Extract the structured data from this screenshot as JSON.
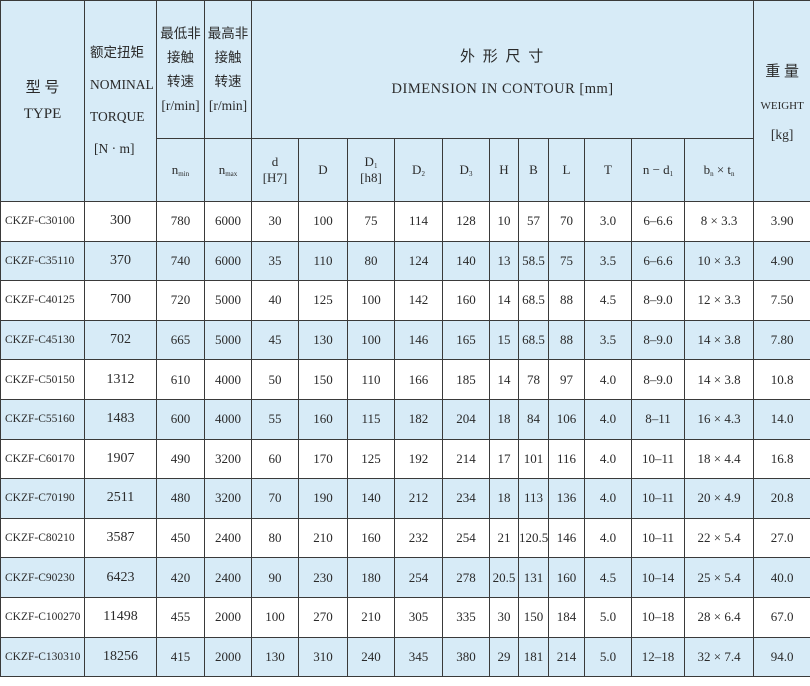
{
  "header": {
    "type_cn": "型 号",
    "type_en": "TYPE",
    "torque_cn": "额定扭矩",
    "torque_en1": "NOMINAL",
    "torque_en2": "TORQUE",
    "torque_unit": "[N · m]",
    "nmin_cn1": "最低非",
    "nmin_cn2": "接触",
    "nmin_cn3": "转速",
    "nmin_unit": "[r/min]",
    "nmax_cn1": "最高非",
    "nmax_cn2": "接触",
    "nmax_cn3": "转速",
    "nmax_unit": "[r/min]",
    "dim_cn": "外 形 尺 寸",
    "dim_en": "DIMENSION IN CONTOUR [mm]",
    "weight_cn": "重 量",
    "weight_en": "WEIGHT",
    "weight_unit": "[kg]",
    "nmin_sym": "n",
    "nmin_sub": "min",
    "nmax_sym": "n",
    "nmax_sub": "max",
    "d": "d",
    "d_tol": "[H7]",
    "D": "D",
    "D1": "D",
    "D1_sub": "1",
    "D1_tol": "[h8]",
    "D2": "D",
    "D2_sub": "2",
    "D3": "D",
    "D3_sub": "3",
    "H": "H",
    "B": "B",
    "L": "L",
    "T": "T",
    "nd1": "n − d",
    "nd1_sub": "1",
    "bn": "b",
    "bn_sub": "n",
    "times": " × t",
    "tn_sub": "n"
  },
  "rows": [
    [
      "CKZF-C30100",
      "300",
      "780",
      "6000",
      "30",
      "100",
      "75",
      "114",
      "128",
      "10",
      "57",
      "70",
      "3.0",
      "6–6.6",
      "8 × 3.3",
      "3.90"
    ],
    [
      "CKZF-C35110",
      "370",
      "740",
      "6000",
      "35",
      "110",
      "80",
      "124",
      "140",
      "13",
      "58.5",
      "75",
      "3.5",
      "6–6.6",
      "10 × 3.3",
      "4.90"
    ],
    [
      "CKZF-C40125",
      "700",
      "720",
      "5000",
      "40",
      "125",
      "100",
      "142",
      "160",
      "14",
      "68.5",
      "88",
      "4.5",
      "8–9.0",
      "12 × 3.3",
      "7.50"
    ],
    [
      "CKZF-C45130",
      "702",
      "665",
      "5000",
      "45",
      "130",
      "100",
      "146",
      "165",
      "15",
      "68.5",
      "88",
      "3.5",
      "8–9.0",
      "14 × 3.8",
      "7.80"
    ],
    [
      "CKZF-C50150",
      "1312",
      "610",
      "4000",
      "50",
      "150",
      "110",
      "166",
      "185",
      "14",
      "78",
      "97",
      "4.0",
      "8–9.0",
      "14 × 3.8",
      "10.8"
    ],
    [
      "CKZF-C55160",
      "1483",
      "600",
      "4000",
      "55",
      "160",
      "115",
      "182",
      "204",
      "18",
      "84",
      "106",
      "4.0",
      "8–11",
      "16 × 4.3",
      "14.0"
    ],
    [
      "CKZF-C60170",
      "1907",
      "490",
      "3200",
      "60",
      "170",
      "125",
      "192",
      "214",
      "17",
      "101",
      "116",
      "4.0",
      "10–11",
      "18 × 4.4",
      "16.8"
    ],
    [
      "CKZF-C70190",
      "2511",
      "480",
      "3200",
      "70",
      "190",
      "140",
      "212",
      "234",
      "18",
      "113",
      "136",
      "4.0",
      "10–11",
      "20 × 4.9",
      "20.8"
    ],
    [
      "CKZF-C80210",
      "3587",
      "450",
      "2400",
      "80",
      "210",
      "160",
      "232",
      "254",
      "21",
      "120.5",
      "146",
      "4.0",
      "10–11",
      "22 × 5.4",
      "27.0"
    ],
    [
      "CKZF-C90230",
      "6423",
      "420",
      "2400",
      "90",
      "230",
      "180",
      "254",
      "278",
      "20.5",
      "131",
      "160",
      "4.5",
      "10–14",
      "25 × 5.4",
      "40.0"
    ],
    [
      "CKZF-C100270",
      "11498",
      "455",
      "2000",
      "100",
      "270",
      "210",
      "305",
      "335",
      "30",
      "150",
      "184",
      "5.0",
      "10–18",
      "28 × 6.4",
      "67.0"
    ],
    [
      "CKZF-C130310",
      "18256",
      "415",
      "2000",
      "130",
      "310",
      "240",
      "345",
      "380",
      "29",
      "181",
      "214",
      "5.0",
      "12–18",
      "32 × 7.4",
      "94.0"
    ]
  ],
  "colors": {
    "header_bg": "#d7ebf7",
    "alt_row_bg": "#d7ebf7",
    "border": "#3a3a3a"
  }
}
